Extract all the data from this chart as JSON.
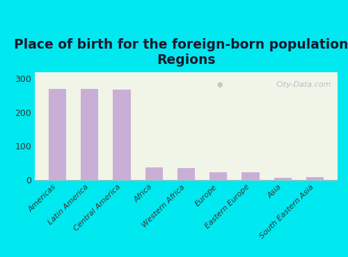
{
  "title": "Place of birth for the foreign-born population -\nRegions",
  "categories": [
    "Americas",
    "Latin America",
    "Central America",
    "Africa",
    "Western Africa",
    "Europe",
    "Eastern Europe",
    "Asia",
    "South Eastern Asia"
  ],
  "values": [
    270,
    270,
    267,
    38,
    34,
    22,
    22,
    7,
    8
  ],
  "bar_color": "#c9aed6",
  "background_outer": "#00e8f0",
  "background_plot_top": "#f0f5e8",
  "background_plot_bottom": "#e8f2da",
  "ylim": [
    0,
    320
  ],
  "yticks": [
    0,
    100,
    200,
    300
  ],
  "title_fontsize": 13.5,
  "tick_label_fontsize": 8,
  "ytick_fontsize": 9,
  "watermark": "City-Data.com"
}
